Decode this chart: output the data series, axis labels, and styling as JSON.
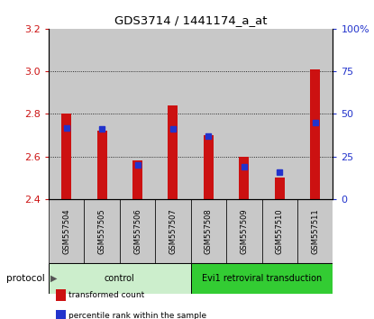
{
  "title": "GDS3714 / 1441174_a_at",
  "samples": [
    "GSM557504",
    "GSM557505",
    "GSM557506",
    "GSM557507",
    "GSM557508",
    "GSM557509",
    "GSM557510",
    "GSM557511"
  ],
  "transformed_counts": [
    2.8,
    2.72,
    2.58,
    2.84,
    2.7,
    2.6,
    2.5,
    3.01
  ],
  "percentile_ranks": [
    42,
    41,
    20,
    41,
    37,
    19,
    16,
    45
  ],
  "y_min": 2.4,
  "y_max": 3.2,
  "y_ticks": [
    2.4,
    2.6,
    2.8,
    3.0,
    3.2
  ],
  "right_y_ticks": [
    0,
    25,
    50,
    75,
    100
  ],
  "right_y_tick_labels": [
    "0",
    "25",
    "50",
    "75",
    "100%"
  ],
  "bar_color": "#cc1111",
  "dot_color": "#2233cc",
  "gray_bg": "#c8c8c8",
  "plot_bg": "#ffffff",
  "groups": [
    {
      "label": "control",
      "start": 0,
      "end": 4,
      "color": "#cceecc"
    },
    {
      "label": "Evi1 retroviral transduction",
      "start": 4,
      "end": 8,
      "color": "#33cc33"
    }
  ],
  "legend_items": [
    {
      "label": "transformed count",
      "color": "#cc1111"
    },
    {
      "label": "percentile rank within the sample",
      "color": "#2233cc"
    }
  ],
  "protocol_label": "protocol",
  "xlabel_color": "#cc1111",
  "right_ylabel_color": "#2233cc"
}
